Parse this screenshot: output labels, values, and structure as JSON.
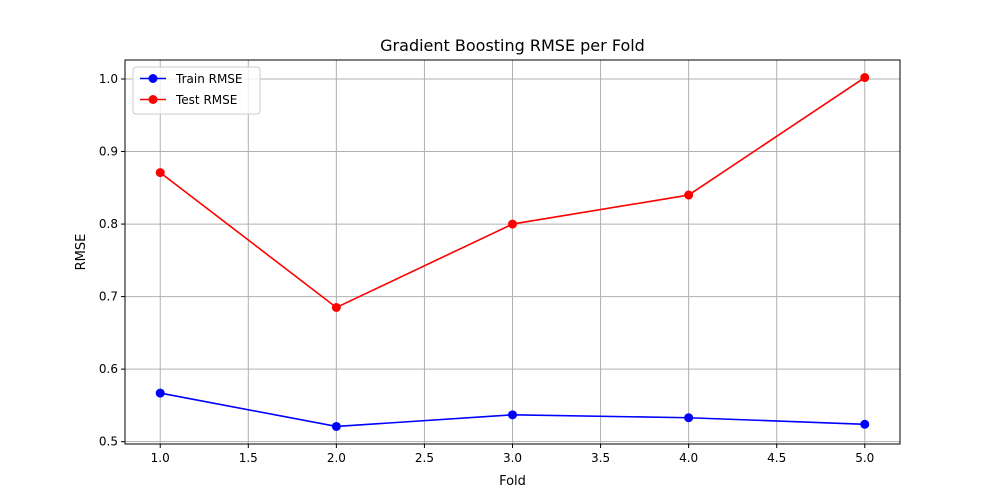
{
  "chart_data": {
    "type": "line",
    "title": "Gradient Boosting RMSE per Fold",
    "xlabel": "Fold",
    "ylabel": "RMSE",
    "x": [
      1.0,
      2.0,
      3.0,
      4.0,
      5.0
    ],
    "xlim": [
      0.8,
      5.2
    ],
    "ylim": [
      0.4968,
      1.0262
    ],
    "xticks": [
      "1.0",
      "1.5",
      "2.0",
      "2.5",
      "3.0",
      "3.5",
      "4.0",
      "4.5",
      "5.0"
    ],
    "yticks": [
      "0.5",
      "0.6",
      "0.7",
      "0.8",
      "0.9",
      "1.0"
    ],
    "grid": true,
    "legend_position": "top-left",
    "series": [
      {
        "name": "Train RMSE",
        "color": "#0000ff",
        "marker": "circle",
        "values": [
          0.567,
          0.521,
          0.537,
          0.533,
          0.524
        ]
      },
      {
        "name": "Test RMSE",
        "color": "#ff0000",
        "marker": "circle",
        "values": [
          0.871,
          0.685,
          0.8,
          0.84,
          1.002
        ]
      }
    ]
  }
}
